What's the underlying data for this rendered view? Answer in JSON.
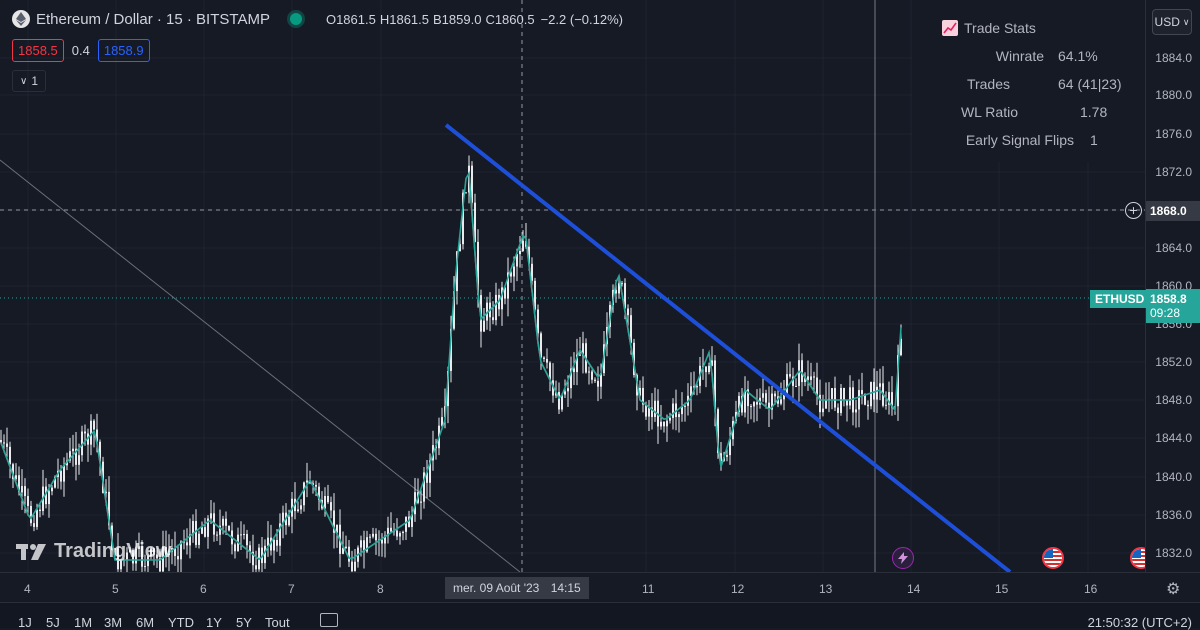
{
  "legend": {
    "symbol": "Ethereum / Dollar · 15 · BITSTAMP",
    "o_key": "O",
    "o_val": "1861.5",
    "h_key": "H",
    "h_val": "1861.5",
    "b_key": "B",
    "b_val": "1859.0",
    "c_key": "C",
    "c_val": "1860.5",
    "change": "−2.2 (−0.12%)",
    "bid": "1858.5",
    "spread": "0.4",
    "ask": "1858.9",
    "indicator_count": "1"
  },
  "trade_stats": {
    "title": "Trade Stats",
    "rows": [
      {
        "label": "Winrate",
        "value": "64.1%"
      },
      {
        "label": "Trades",
        "value": "64 (41|23)"
      },
      {
        "label": "WL Ratio",
        "value": "1.78"
      },
      {
        "label": "Early Signal Flips",
        "value": "1"
      }
    ]
  },
  "price_scale": {
    "currency": "USD",
    "ticks": [
      "1884.0",
      "1880.0",
      "1876.0",
      "1872.0",
      "1868.0",
      "1864.0",
      "1860.0",
      "1856.0",
      "1852.0",
      "1848.0",
      "1844.0",
      "1840.0",
      "1836.0",
      "1832.0"
    ],
    "crosshair_price": "1868.0",
    "symbol_tag": "ETHUSD",
    "last_price": "1858.8",
    "countdown": "09:28"
  },
  "time_axis": {
    "dates": [
      "4",
      "5",
      "6",
      "7",
      "8",
      "11",
      "12",
      "13",
      "14",
      "15",
      "16"
    ],
    "crosshair_date": "mer. 09 Août '23",
    "crosshair_time": "14:15"
  },
  "bottom_bar": {
    "ranges": [
      "1J",
      "5J",
      "1M",
      "3M",
      "6M",
      "YTD",
      "1Y",
      "5Y",
      "Tout"
    ],
    "clock": "21:50:32 (UTC+2)"
  },
  "watermark": "TradingView",
  "colors": {
    "background": "#161a25",
    "trendline": "#1e4fd8",
    "up": "#26a69a",
    "down": "#ef5350",
    "last_price_bg": "#26a69a"
  }
}
